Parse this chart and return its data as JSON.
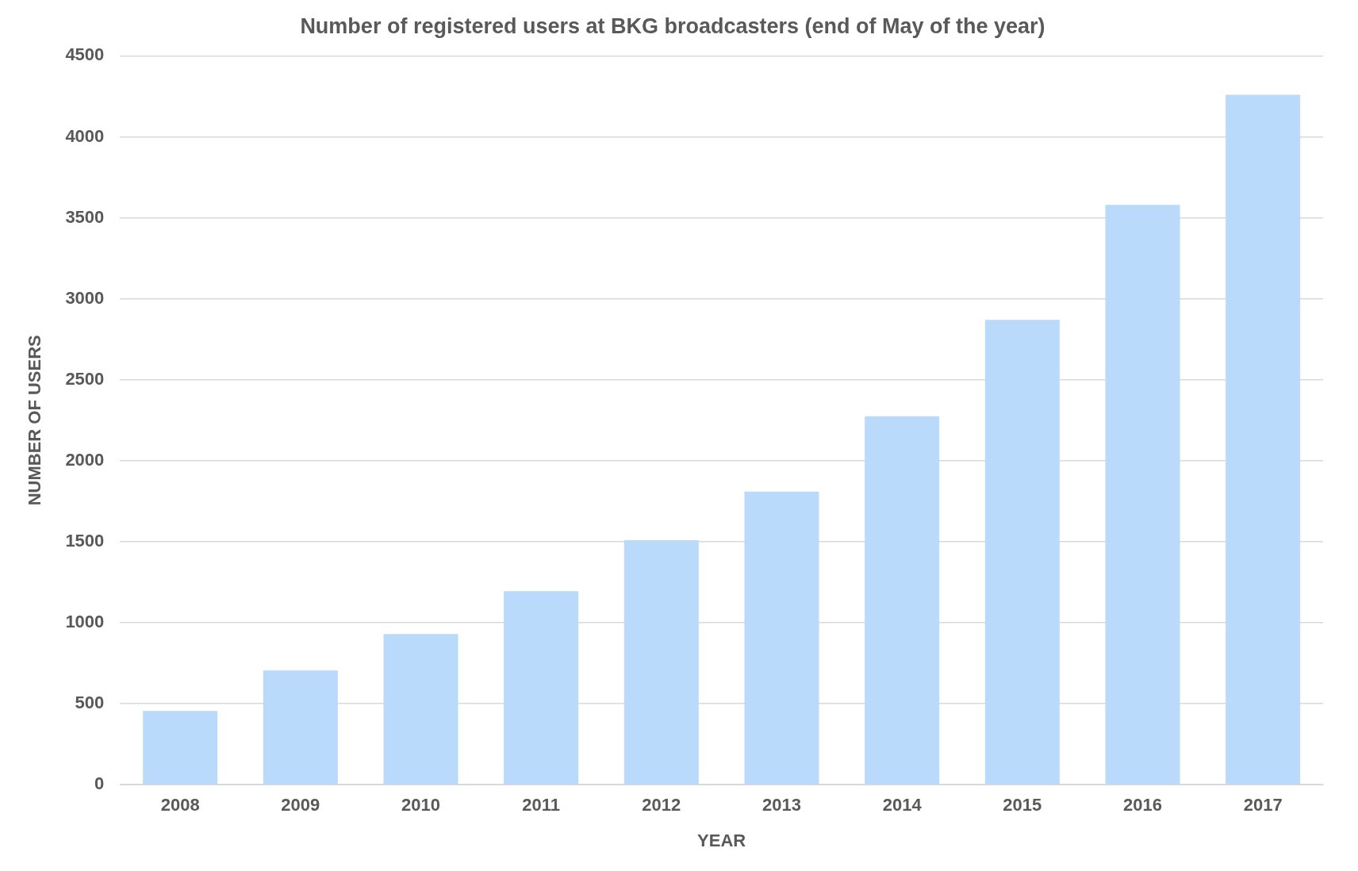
{
  "chart_data": {
    "type": "bar",
    "title": "Number of registered users at BKG broadcasters (end of May of the year)",
    "xlabel": "YEAR",
    "ylabel": "NUMBER OF USERS",
    "categories": [
      "2008",
      "2009",
      "2010",
      "2011",
      "2012",
      "2013",
      "2014",
      "2015",
      "2016",
      "2017"
    ],
    "values": [
      455,
      705,
      930,
      1195,
      1510,
      1810,
      2275,
      2870,
      3580,
      4260
    ],
    "color": "#b9dafb",
    "ylim": [
      0,
      4500
    ],
    "yticks": [
      0,
      500,
      1000,
      1500,
      2000,
      2500,
      3000,
      3500,
      4000,
      4500
    ],
    "grid": "y"
  }
}
